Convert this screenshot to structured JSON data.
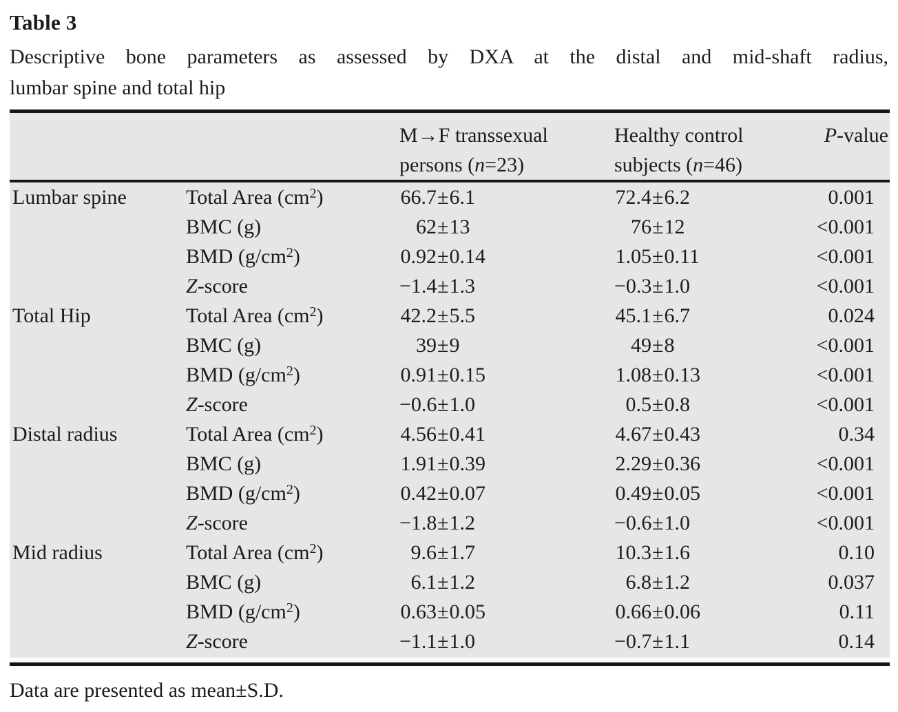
{
  "title": "Table 3",
  "caption_line1": "Descriptive bone parameters as assessed by DXA at the distal and mid-shaft radius,",
  "caption_line2": "lumbar spine and total hip",
  "footnote": "Data are presented as mean±S.D.",
  "colors": {
    "table_bg": "#e5e6e5",
    "rule": "#161616",
    "text": "#1c1c1c",
    "page_bg": "#ffffff"
  },
  "table": {
    "col_headers": {
      "mtf_lines": [
        "M→F transsexual",
        "persons (*n*=23)"
      ],
      "control_lines": [
        "Healthy control",
        "subjects (*n*=46)"
      ],
      "pvalue": "*P*-value"
    },
    "groups": [
      {
        "site": "Lumbar spine",
        "rows": [
          {
            "param": "Total Area (cm²)",
            "mtf": "66.7±6.1",
            "control": "72.4±6.2",
            "p": "0.001"
          },
          {
            "param": "BMC (g)",
            "mtf": "62±13",
            "control": "76±12",
            "p": "<0.001"
          },
          {
            "param": "BMD (g/cm²)",
            "mtf": "0.92±0.14",
            "control": "1.05±0.11",
            "p": "<0.001"
          },
          {
            "param": "*Z*-score",
            "mtf": "−1.4±1.3",
            "control": "−0.3±1.0",
            "p": "<0.001"
          }
        ]
      },
      {
        "site": "Total Hip",
        "rows": [
          {
            "param": "Total Area (cm²)",
            "mtf": "42.2±5.5",
            "control": "45.1±6.7",
            "p": "0.024"
          },
          {
            "param": "BMC (g)",
            "mtf": "39±9",
            "control": "49±8",
            "p": "<0.001"
          },
          {
            "param": "BMD (g/cm²)",
            "mtf": "0.91±0.15",
            "control": "1.08±0.13",
            "p": "<0.001"
          },
          {
            "param": "*Z*-score",
            "mtf": "−0.6±1.0",
            "control": "0.5±0.8",
            "p": "<0.001"
          }
        ]
      },
      {
        "site": "Distal radius",
        "rows": [
          {
            "param": "Total Area (cm²)",
            "mtf": "4.56±0.41",
            "control": "4.67±0.43",
            "p": "0.34"
          },
          {
            "param": "BMC (g)",
            "mtf": "1.91±0.39",
            "control": "2.29±0.36",
            "p": "<0.001"
          },
          {
            "param": "BMD (g/cm²)",
            "mtf": "0.42±0.07",
            "control": "0.49±0.05",
            "p": "<0.001"
          },
          {
            "param": "*Z*-score",
            "mtf": "−1.8±1.2",
            "control": "−0.6±1.0",
            "p": "<0.001"
          }
        ]
      },
      {
        "site": "Mid radius",
        "rows": [
          {
            "param": "Total Area (cm²)",
            "mtf": "9.6±1.7",
            "control": "10.3±1.6",
            "p": "0.10"
          },
          {
            "param": "BMC (g)",
            "mtf": "6.1±1.2",
            "control": "6.8±1.2",
            "p": "0.037"
          },
          {
            "param": "BMD (g/cm²)",
            "mtf": "0.63±0.05",
            "control": "0.66±0.06",
            "p": "0.11"
          },
          {
            "param": "*Z*-score",
            "mtf": "−1.1±1.0",
            "control": "−0.7±1.1",
            "p": "0.14"
          }
        ]
      }
    ]
  }
}
